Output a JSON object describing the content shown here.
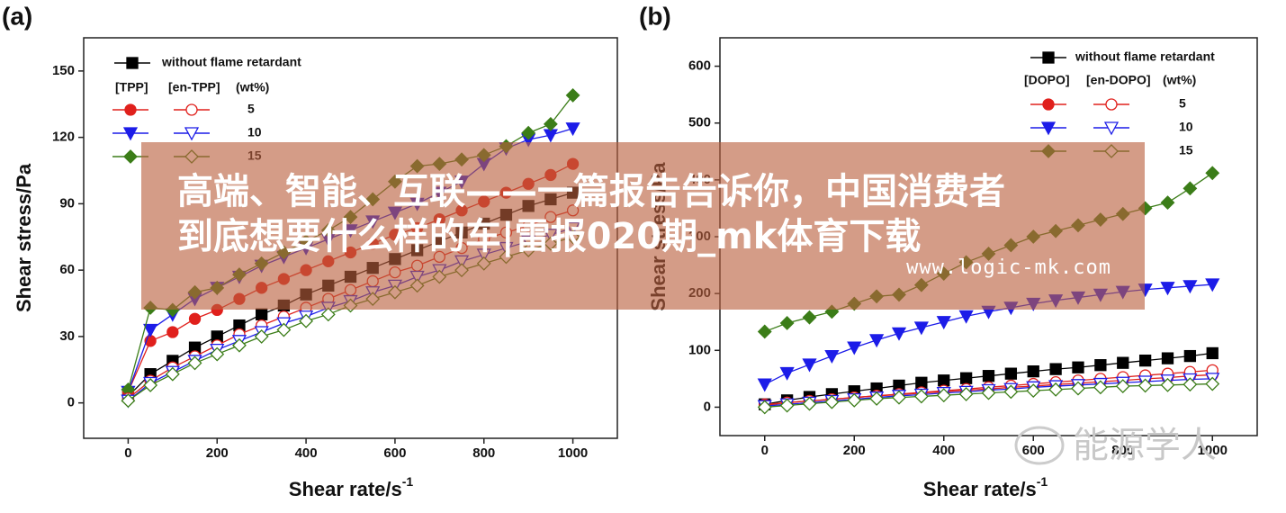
{
  "chart_data": [
    {
      "type": "line",
      "label": "(a)",
      "xlabel": "Shear rate/s",
      "xlabel_sup": "-1",
      "ylabel": "Shear stress/Pa",
      "x": [
        0,
        50,
        100,
        150,
        200,
        250,
        300,
        350,
        400,
        450,
        500,
        550,
        600,
        650,
        700,
        750,
        800,
        850,
        900,
        950,
        1000
      ],
      "xlim": [
        -100,
        1100
      ],
      "xticks": [
        0,
        200,
        400,
        600,
        800,
        1000
      ],
      "ylim": [
        -16,
        165
      ],
      "yticks": [
        0,
        30,
        60,
        90,
        120,
        150
      ],
      "legend": {
        "header": [
          "[TPP]",
          "[en-TPP]",
          "(wt%)"
        ],
        "rows": [
          "5",
          "10",
          "15"
        ]
      },
      "series": [
        {
          "name": "without flame retardant",
          "color": "#000000",
          "marker": "square",
          "filled": true,
          "values": [
            3,
            13,
            19,
            25,
            30,
            35,
            40,
            44,
            49,
            53,
            57,
            61,
            65,
            69,
            73,
            77,
            81,
            85,
            89,
            92,
            95
          ]
        },
        {
          "color": "#e0201c",
          "marker": "circle",
          "filled": true,
          "values": [
            5,
            28,
            32,
            38,
            42,
            47,
            52,
            56,
            60,
            64,
            68,
            72,
            76,
            79,
            83,
            87,
            91,
            95,
            99,
            103,
            108
          ]
        },
        {
          "color": "#1c1ce8",
          "marker": "triangle",
          "filled": true,
          "values": [
            5,
            33,
            40,
            47,
            52,
            57,
            62,
            66,
            70,
            74,
            78,
            82,
            86,
            90,
            95,
            100,
            108,
            115,
            119,
            121,
            124
          ]
        },
        {
          "color": "#3b7d18",
          "marker": "diamond",
          "filled": true,
          "values": [
            6,
            43,
            42,
            50,
            52,
            58,
            63,
            68,
            73,
            78,
            84,
            92,
            100,
            107,
            108,
            110,
            112,
            116,
            122,
            126,
            139
          ]
        },
        {
          "color": "#e0201c",
          "marker": "circle",
          "filled": false,
          "values": [
            2,
            10,
            16,
            21,
            26,
            31,
            35,
            39,
            43,
            47,
            51,
            55,
            59,
            62,
            66,
            70,
            74,
            77,
            80,
            84,
            87
          ]
        },
        {
          "color": "#1c1ce8",
          "marker": "triangle",
          "filled": false,
          "values": [
            1,
            9,
            14,
            19,
            24,
            28,
            32,
            36,
            39,
            43,
            46,
            50,
            53,
            57,
            60,
            64,
            67,
            70,
            73,
            76,
            79
          ]
        },
        {
          "color": "#3b7d18",
          "marker": "diamond",
          "filled": false,
          "values": [
            1,
            8,
            13,
            18,
            22,
            26,
            30,
            33,
            37,
            40,
            44,
            47,
            50,
            53,
            57,
            60,
            63,
            66,
            69,
            72,
            75
          ]
        }
      ]
    },
    {
      "type": "line",
      "label": "(b)",
      "xlabel": "Shear rate/s",
      "xlabel_sup": "-1",
      "ylabel": "Shear stress/Pa",
      "x": [
        0,
        50,
        100,
        150,
        200,
        250,
        300,
        350,
        400,
        450,
        500,
        550,
        600,
        650,
        700,
        750,
        800,
        850,
        900,
        950,
        1000
      ],
      "xlim": [
        -100,
        1100
      ],
      "xticks": [
        0,
        200,
        400,
        600,
        800,
        1000
      ],
      "ylim": [
        -50,
        650
      ],
      "yticks": [
        0,
        100,
        200,
        300,
        400,
        500,
        600
      ],
      "legend": {
        "header": [
          "[DOPO]",
          "[en-DOPO]",
          "(wt%)"
        ],
        "rows": [
          "5",
          "10",
          "15"
        ]
      },
      "series": [
        {
          "name": "without flame retardant",
          "color": "#000000",
          "marker": "square",
          "filled": true,
          "values": [
            5,
            12,
            18,
            23,
            28,
            33,
            38,
            43,
            47,
            51,
            55,
            59,
            63,
            67,
            70,
            74,
            78,
            82,
            86,
            90,
            95
          ]
        },
        {
          "color": "#e0201c",
          "marker": "circle",
          "filled": true,
          "values": [
            5,
            8,
            11,
            14,
            17,
            20,
            22,
            25,
            27,
            30,
            32,
            35,
            37,
            40,
            42,
            45,
            47,
            50,
            52,
            55,
            57
          ]
        },
        {
          "color": "#1c1ce8",
          "marker": "triangle",
          "filled": true,
          "values": [
            40,
            60,
            75,
            90,
            105,
            118,
            130,
            140,
            150,
            160,
            168,
            175,
            182,
            188,
            193,
            198,
            203,
            207,
            210,
            213,
            216
          ]
        },
        {
          "color": "#3b7d18",
          "marker": "diamond",
          "filled": true,
          "values": [
            133,
            148,
            158,
            168,
            182,
            195,
            198,
            215,
            235,
            255,
            270,
            285,
            300,
            310,
            320,
            330,
            340,
            350,
            360,
            385,
            412
          ]
        },
        {
          "color": "#e0201c",
          "marker": "circle",
          "filled": false,
          "values": [
            3,
            8,
            11,
            14,
            17,
            20,
            23,
            26,
            29,
            32,
            35,
            38,
            41,
            44,
            47,
            50,
            53,
            56,
            59,
            62,
            65
          ]
        },
        {
          "color": "#1c1ce8",
          "marker": "triangle",
          "filled": false,
          "values": [
            2,
            5,
            8,
            11,
            14,
            17,
            20,
            22,
            25,
            27,
            30,
            32,
            35,
            37,
            39,
            41,
            43,
            45,
            47,
            49,
            50
          ]
        },
        {
          "color": "#3b7d18",
          "marker": "diamond",
          "filled": false,
          "values": [
            0,
            3,
            6,
            9,
            12,
            15,
            17,
            19,
            21,
            23,
            25,
            27,
            29,
            31,
            33,
            35,
            37,
            38,
            39,
            40,
            41
          ]
        }
      ]
    }
  ],
  "overlay": {
    "lines": [
      "高端、智能、互联——一篇报告告诉你，中国消费者",
      "到底想要什么样的车|雷报020期_mk体育下载"
    ],
    "url": "www.logic-mk.com"
  },
  "watermark": "能源学人"
}
